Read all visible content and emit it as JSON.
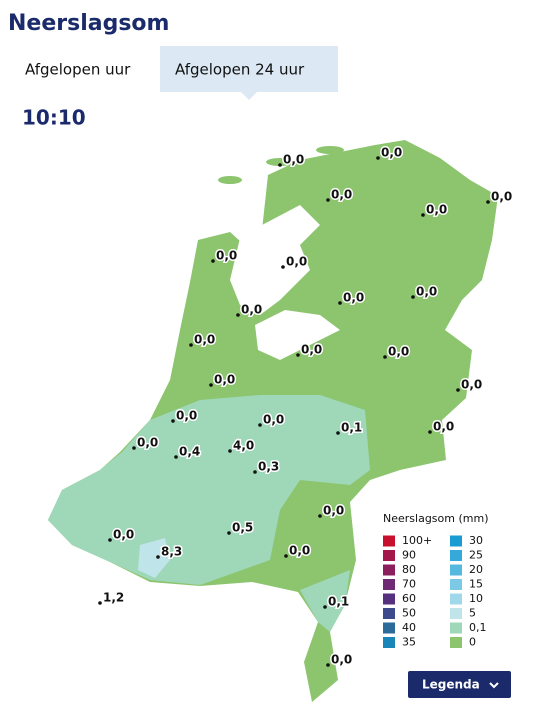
{
  "header": {
    "title": "Neerslagsom"
  },
  "tabs": [
    {
      "label": "Afgelopen uur",
      "selected": false
    },
    {
      "label": "Afgelopen 24 uur",
      "selected": true
    }
  ],
  "time": "10:10",
  "stations": [
    "0,0",
    "0,0",
    "0,0",
    "0,0",
    "0,0",
    "0,0",
    "0,0",
    "0,0",
    "0,0",
    "0,0",
    "0,0",
    "0,0",
    "0,0",
    "0,0",
    "0,0",
    "0,0",
    "0,0",
    "0,1",
    "0,0",
    "0,0",
    "0,4",
    "4,0",
    "0,3",
    "0,0",
    "0,0",
    "8,3",
    "0,5",
    "0,0",
    "1,2",
    "0,1",
    "0,0"
  ],
  "legend": {
    "title": "Neerslagsom (mm)",
    "items": [
      {
        "label": "100+",
        "color": "#c8102e"
      },
      {
        "label": "90",
        "color": "#a3174a"
      },
      {
        "label": "80",
        "color": "#8b1f5e"
      },
      {
        "label": "70",
        "color": "#6e2a73"
      },
      {
        "label": "60",
        "color": "#54307f"
      },
      {
        "label": "50",
        "color": "#3d4a8c"
      },
      {
        "label": "40",
        "color": "#2b6a99"
      },
      {
        "label": "35",
        "color": "#1a85b8"
      },
      {
        "label": "30",
        "color": "#1a9bd1"
      },
      {
        "label": "25",
        "color": "#35a9d9"
      },
      {
        "label": "20",
        "color": "#55b8df"
      },
      {
        "label": "15",
        "color": "#7cc9e6"
      },
      {
        "label": "10",
        "color": "#9fd8ea"
      },
      {
        "label": "5",
        "color": "#bfe4ea"
      },
      {
        "label": "0,1",
        "color": "#9ed8b8"
      },
      {
        "label": "0",
        "color": "#8cc56e"
      }
    ]
  },
  "button": "Legenda"
}
